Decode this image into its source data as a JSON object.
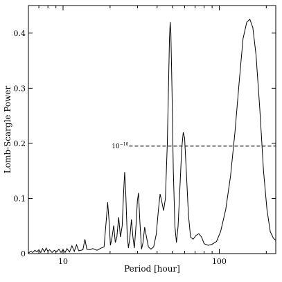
{
  "chart_data": {
    "type": "line",
    "xlabel": "Period [hour]",
    "ylabel": "Lomb-Scargle Power",
    "x_scale": "log",
    "xlim": [
      6,
      230
    ],
    "ylim": [
      0,
      0.45
    ],
    "x_ticks": [
      {
        "value": 10,
        "label": "10"
      },
      {
        "value": 100,
        "label": "100"
      }
    ],
    "x_minor_ticks": [
      7,
      8,
      9,
      20,
      30,
      40,
      50,
      60,
      70,
      80,
      90,
      200
    ],
    "y_ticks": [
      {
        "value": 0,
        "label": "0"
      },
      {
        "value": 0.1,
        "label": "0.1"
      },
      {
        "value": 0.2,
        "label": "0.2"
      },
      {
        "value": 0.3,
        "label": "0.3"
      },
      {
        "value": 0.4,
        "label": "0.4"
      }
    ],
    "threshold": {
      "value": 0.195,
      "x_start": 26.5,
      "x_end": 230,
      "label_base": "10",
      "label_exp": "−10"
    },
    "series": [
      {
        "style": "solid",
        "color": "#000000",
        "points": [
          [
            6.0,
            0.001
          ],
          [
            6.2,
            0.004
          ],
          [
            6.4,
            0.002
          ],
          [
            6.6,
            0.006
          ],
          [
            6.8,
            0.003
          ],
          [
            7.0,
            0.007
          ],
          [
            7.2,
            0.002
          ],
          [
            7.4,
            0.009
          ],
          [
            7.6,
            0.003
          ],
          [
            7.8,
            0.01
          ],
          [
            8.0,
            0.004
          ],
          [
            8.2,
            0.007
          ],
          [
            8.5,
            0.002
          ],
          [
            8.8,
            0.006
          ],
          [
            9.1,
            0.003
          ],
          [
            9.4,
            0.008
          ],
          [
            9.7,
            0.002
          ],
          [
            10.0,
            0.007
          ],
          [
            10.3,
            0.002
          ],
          [
            10.6,
            0.009
          ],
          [
            11.0,
            0.003
          ],
          [
            11.4,
            0.014
          ],
          [
            11.8,
            0.004
          ],
          [
            12.2,
            0.016
          ],
          [
            12.6,
            0.005
          ],
          [
            13.0,
            0.006
          ],
          [
            13.4,
            0.007
          ],
          [
            13.8,
            0.026
          ],
          [
            14.2,
            0.008
          ],
          [
            14.8,
            0.007
          ],
          [
            15.5,
            0.009
          ],
          [
            16.5,
            0.006
          ],
          [
            17.5,
            0.01
          ],
          [
            18.3,
            0.012
          ],
          [
            18.9,
            0.06
          ],
          [
            19.3,
            0.093
          ],
          [
            19.7,
            0.06
          ],
          [
            20.1,
            0.015
          ],
          [
            20.6,
            0.03
          ],
          [
            21.1,
            0.051
          ],
          [
            21.6,
            0.02
          ],
          [
            22.1,
            0.03
          ],
          [
            22.7,
            0.066
          ],
          [
            23.3,
            0.03
          ],
          [
            23.9,
            0.05
          ],
          [
            24.4,
            0.11
          ],
          [
            24.8,
            0.148
          ],
          [
            25.2,
            0.11
          ],
          [
            25.7,
            0.04
          ],
          [
            26.2,
            0.01
          ],
          [
            26.8,
            0.03
          ],
          [
            27.4,
            0.062
          ],
          [
            28.0,
            0.03
          ],
          [
            28.6,
            0.01
          ],
          [
            29.3,
            0.05
          ],
          [
            29.9,
            0.095
          ],
          [
            30.4,
            0.11
          ],
          [
            31.0,
            0.06
          ],
          [
            31.8,
            0.008
          ],
          [
            32.5,
            0.02
          ],
          [
            33.3,
            0.048
          ],
          [
            34.2,
            0.03
          ],
          [
            35.2,
            0.012
          ],
          [
            36.5,
            0.008
          ],
          [
            38.0,
            0.012
          ],
          [
            39.5,
            0.035
          ],
          [
            40.8,
            0.08
          ],
          [
            41.8,
            0.108
          ],
          [
            42.8,
            0.095
          ],
          [
            44.0,
            0.078
          ],
          [
            45.2,
            0.1
          ],
          [
            46.5,
            0.2
          ],
          [
            47.3,
            0.3
          ],
          [
            48.0,
            0.39
          ],
          [
            48.5,
            0.42
          ],
          [
            49.0,
            0.4
          ],
          [
            49.8,
            0.3
          ],
          [
            50.8,
            0.15
          ],
          [
            52.0,
            0.05
          ],
          [
            53.2,
            0.02
          ],
          [
            54.5,
            0.05
          ],
          [
            56.0,
            0.12
          ],
          [
            57.5,
            0.19
          ],
          [
            58.8,
            0.22
          ],
          [
            60.0,
            0.21
          ],
          [
            61.5,
            0.15
          ],
          [
            63.5,
            0.07
          ],
          [
            65.5,
            0.03
          ],
          [
            68.0,
            0.026
          ],
          [
            71.0,
            0.033
          ],
          [
            74.0,
            0.036
          ],
          [
            77.0,
            0.03
          ],
          [
            80.0,
            0.018
          ],
          [
            85.0,
            0.015
          ],
          [
            90.0,
            0.017
          ],
          [
            96.0,
            0.022
          ],
          [
            102.0,
            0.04
          ],
          [
            110.0,
            0.08
          ],
          [
            118.0,
            0.14
          ],
          [
            126.0,
            0.22
          ],
          [
            134.0,
            0.31
          ],
          [
            142.0,
            0.39
          ],
          [
            150.0,
            0.42
          ],
          [
            157.0,
            0.425
          ],
          [
            164.0,
            0.41
          ],
          [
            172.0,
            0.36
          ],
          [
            182.0,
            0.26
          ],
          [
            192.0,
            0.15
          ],
          [
            202.0,
            0.08
          ],
          [
            212.0,
            0.04
          ],
          [
            222.0,
            0.028
          ],
          [
            230.0,
            0.024
          ]
        ]
      }
    ]
  }
}
